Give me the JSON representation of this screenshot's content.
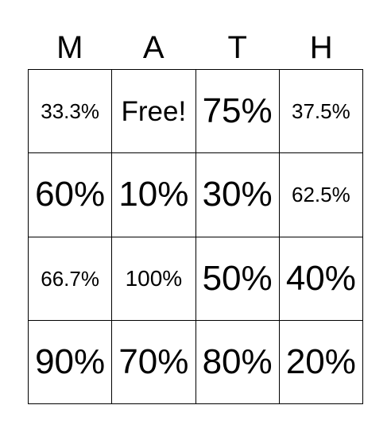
{
  "header": {
    "letters": [
      "M",
      "A",
      "T",
      "H"
    ]
  },
  "cells": [
    [
      "33.3%",
      "Free!",
      "75%",
      "37.5%"
    ],
    [
      "60%",
      "10%",
      "30%",
      "62.5%"
    ],
    [
      "66.7%",
      "100%",
      "50%",
      "40%"
    ],
    [
      "90%",
      "70%",
      "80%",
      "20%"
    ]
  ]
}
